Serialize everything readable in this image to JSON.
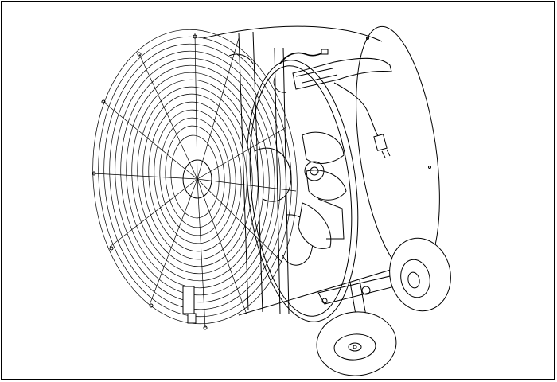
{
  "figure": {
    "subject": "drum-fan-illustration",
    "style": "black line art on white",
    "colors": {
      "line": "#000000",
      "background": "#ffffff"
    }
  }
}
